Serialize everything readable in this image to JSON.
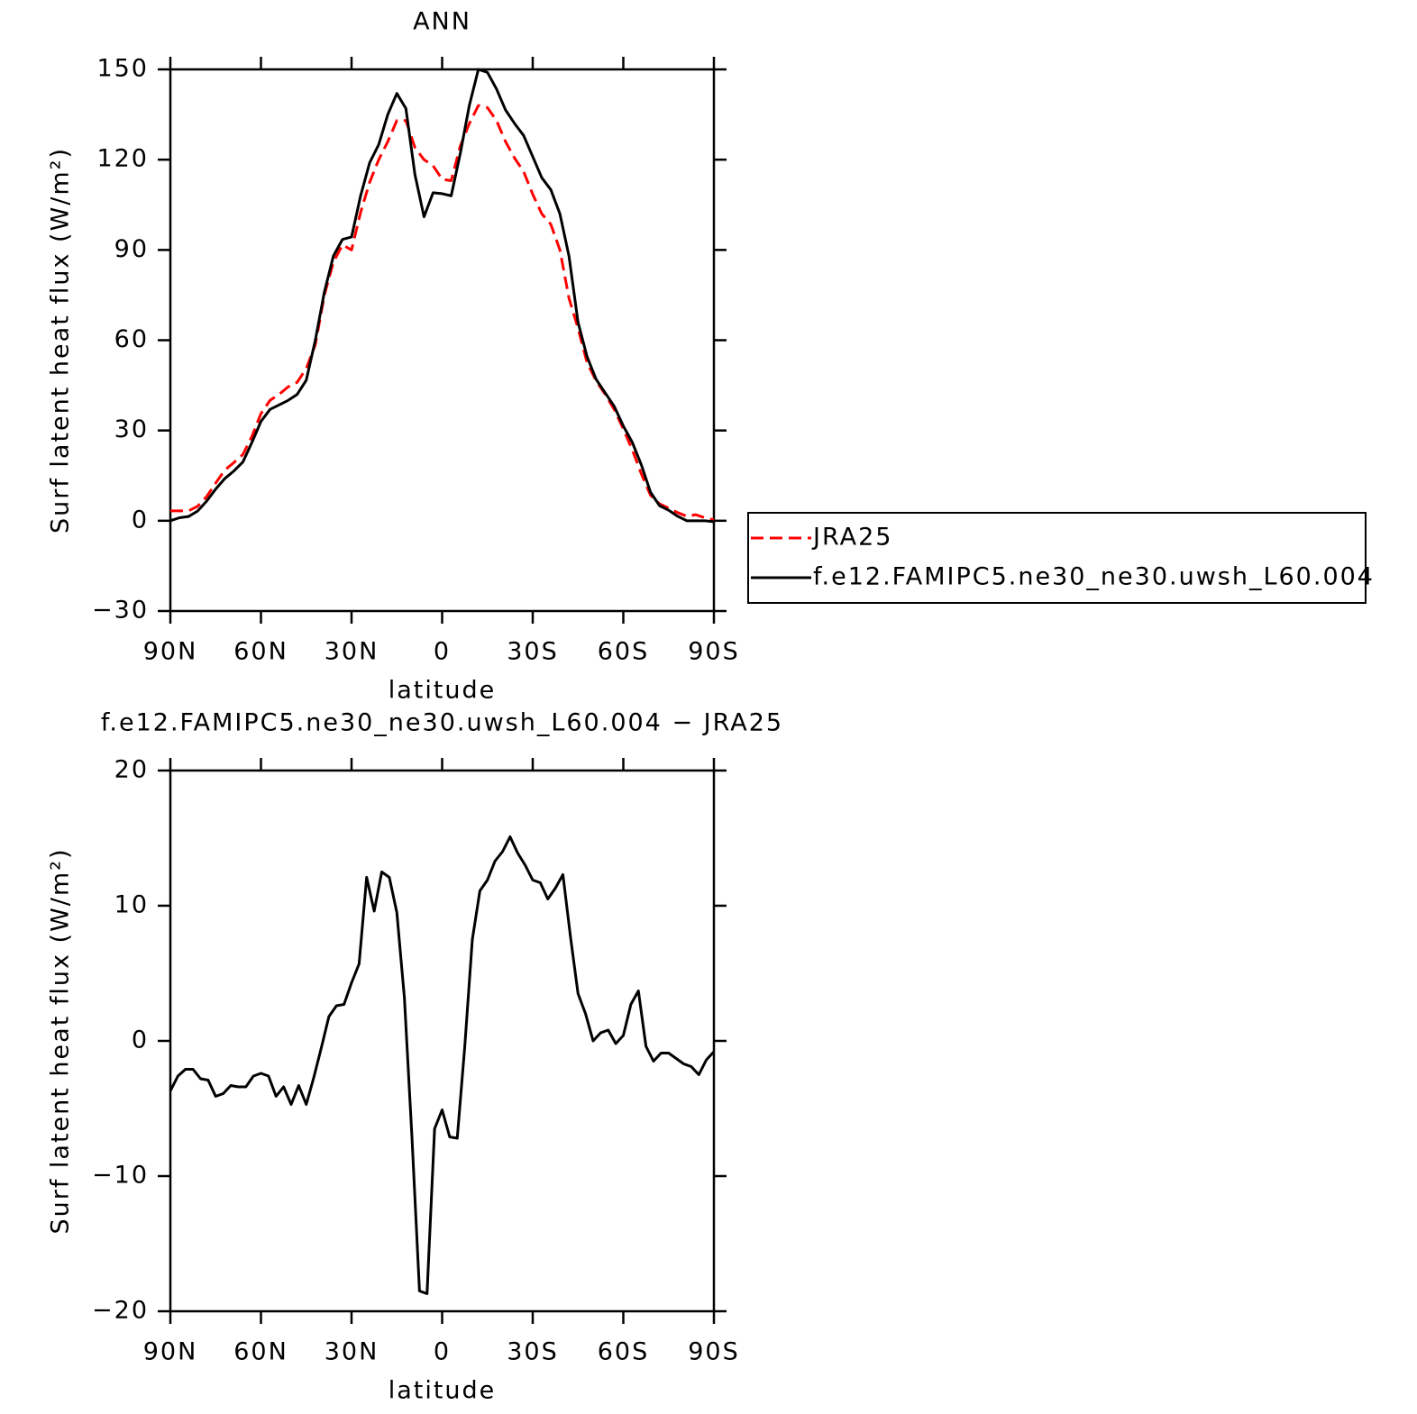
{
  "chart_data": [
    {
      "type": "line",
      "title": "ANN",
      "xlabel": "latitude",
      "ylabel": "Surf latent heat flux (W/m²)",
      "x": [
        90,
        87,
        84,
        81,
        78,
        75,
        72,
        69,
        66,
        63,
        60,
        57,
        54,
        51,
        48,
        45,
        42,
        39,
        36,
        33,
        30,
        27,
        24,
        21,
        18,
        15,
        12,
        9,
        6,
        3,
        0,
        -3,
        -6,
        -9,
        -12,
        -15,
        -18,
        -21,
        -24,
        -27,
        -30,
        -33,
        -36,
        -39,
        -42,
        -45,
        -48,
        -51,
        -54,
        -57,
        -60,
        -63,
        -66,
        -69,
        -72,
        -75,
        -78,
        -81,
        -84,
        -87,
        -90
      ],
      "xlim": [
        90,
        -90
      ],
      "xticks": [
        {
          "value": 90,
          "label": "90N"
        },
        {
          "value": 60,
          "label": "60N"
        },
        {
          "value": 30,
          "label": "30N"
        },
        0,
        {
          "value": -30,
          "label": "30S"
        },
        {
          "value": -60,
          "label": "60S"
        },
        {
          "value": -90,
          "label": "90S"
        }
      ],
      "ylim": [
        -30,
        150
      ],
      "yticks": [
        {
          "value": -30,
          "label": "−30"
        },
        0,
        30,
        60,
        90,
        120,
        150
      ],
      "legend": "right",
      "series": [
        {
          "name": "JRA25",
          "color": "#ff0000",
          "dash": "dashed",
          "values": [
            3.3,
            3.3,
            3.3,
            4.8,
            8,
            12.5,
            16.8,
            19.3,
            22,
            28,
            35.6,
            40,
            42,
            44.5,
            46,
            50.6,
            58.5,
            75,
            86,
            91.7,
            90,
            102.5,
            112.5,
            120,
            126,
            133,
            133,
            124,
            120,
            118,
            113.5,
            113,
            124.5,
            132,
            138,
            137.3,
            133,
            126,
            120.5,
            116,
            108.5,
            102,
            98.5,
            90,
            74,
            64,
            52.5,
            46.5,
            42,
            37,
            30.5,
            23.5,
            15.5,
            8.5,
            5.6,
            4.2,
            2.7,
            1.5,
            2,
            1,
            0.3
          ]
        },
        {
          "name": "f.e12.FAMIPC5.ne30_ne30.uwsh_L60.004",
          "color": "#000000",
          "dash": "solid",
          "values": [
            0,
            1,
            1.4,
            3.2,
            6.5,
            10.5,
            14,
            16.5,
            19.5,
            26,
            33,
            37,
            38.5,
            40,
            42,
            46.7,
            60,
            76,
            88,
            93.5,
            94.3,
            108,
            119,
            125,
            135,
            142,
            137,
            115,
            101,
            109,
            108.7,
            108,
            122,
            138,
            150,
            149,
            143.5,
            136.5,
            132,
            128,
            121,
            114,
            110,
            102,
            88,
            66,
            54.5,
            47,
            42.5,
            38,
            31.5,
            26,
            18.5,
            9.5,
            5,
            3.5,
            1.5,
            0,
            0,
            0,
            -0.3
          ]
        }
      ]
    },
    {
      "type": "line",
      "title": "f.e12.FAMIPC5.ne30_ne30.uwsh_L60.004 − JRA25",
      "xlabel": "latitude",
      "ylabel": "Surf latent heat flux (W/m²)",
      "x": [
        90,
        87.5,
        85,
        82.5,
        80,
        77.5,
        75,
        72.5,
        70,
        67.5,
        65,
        62.5,
        60,
        57.5,
        55,
        52.5,
        50,
        47.5,
        45,
        42.5,
        40,
        37.5,
        35,
        32.5,
        30,
        27.5,
        25,
        22.5,
        20,
        17.5,
        15,
        12.5,
        10,
        7.5,
        5,
        2.5,
        0,
        -2.5,
        -5,
        -7.5,
        -10,
        -12.5,
        -15,
        -17.5,
        -20,
        -22.5,
        -25,
        -27.5,
        -30,
        -32.5,
        -35,
        -37.5,
        -40,
        -42.5,
        -45,
        -47.5,
        -50,
        -52.5,
        -55,
        -57.5,
        -60,
        -62.5,
        -65,
        -67.5,
        -70,
        -72.5,
        -75,
        -77.5,
        -80,
        -82.5,
        -85,
        -87.5,
        -90
      ],
      "xlim": [
        90,
        -90
      ],
      "xticks": [
        {
          "value": 90,
          "label": "90N"
        },
        {
          "value": 60,
          "label": "60N"
        },
        {
          "value": 30,
          "label": "30N"
        },
        0,
        {
          "value": -30,
          "label": "30S"
        },
        {
          "value": -60,
          "label": "60S"
        },
        {
          "value": -90,
          "label": "90S"
        }
      ],
      "ylim": [
        -20,
        20
      ],
      "yticks": [
        {
          "value": -20,
          "label": "−20"
        },
        {
          "value": -10,
          "label": "−10"
        },
        0,
        10,
        20
      ],
      "series": [
        {
          "color": "#000000",
          "dash": "solid",
          "values": [
            -3.7,
            -2.6,
            -2.1,
            -2.1,
            -2.8,
            -2.9,
            -4.1,
            -3.9,
            -3.3,
            -3.4,
            -3.4,
            -2.6,
            -2.4,
            -2.6,
            -4.1,
            -3.4,
            -4.7,
            -3.3,
            -4.7,
            -2.7,
            -0.5,
            1.8,
            2.6,
            2.7,
            4.3,
            5.7,
            12.1,
            9.6,
            12.5,
            12.1,
            9.5,
            3.2,
            -7.1,
            -18.5,
            -18.7,
            -6.5,
            -5.1,
            -7.1,
            -7.2,
            -0.4,
            7.5,
            11.1,
            11.9,
            13.3,
            14,
            15.1,
            13.9,
            13,
            11.9,
            11.7,
            10.5,
            11.3,
            12.3,
            7.7,
            3.5,
            2,
            0,
            0.6,
            0.8,
            -0.2,
            0.4,
            2.7,
            3.7,
            -0.4,
            -1.5,
            -0.9,
            -0.9,
            -1.3,
            -1.7,
            -1.9,
            -2.5,
            -1.4,
            -0.8
          ]
        }
      ]
    }
  ]
}
